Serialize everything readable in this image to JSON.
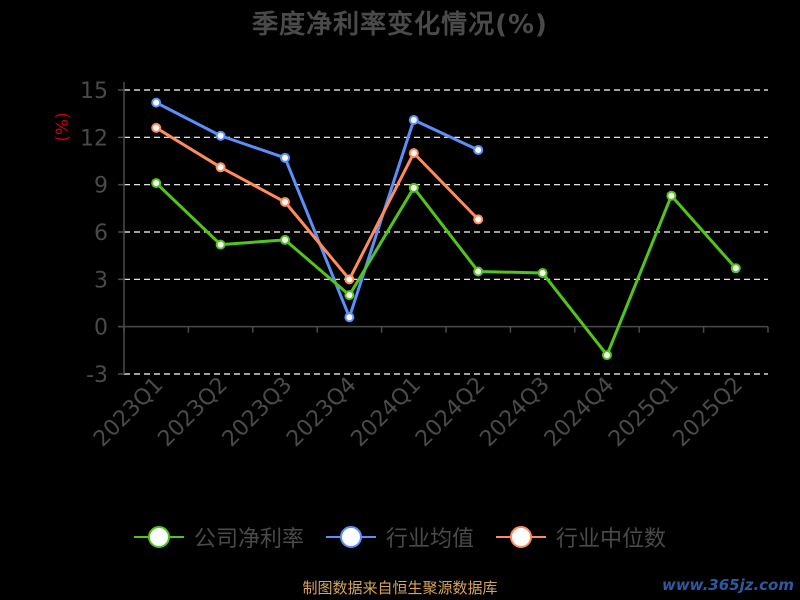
{
  "page": {
    "title": "季度净利率变化情况(%)",
    "unit": "(%)",
    "source": "制图数据来自恒生聚源数据库",
    "watermark": "www.365jz.com"
  },
  "chart_data": {
    "type": "line",
    "title": "季度净利率变化情况(%)",
    "ylabel": "(%)",
    "xlabel": "",
    "categories": [
      "2023Q1",
      "2023Q2",
      "2023Q3",
      "2023Q4",
      "2024Q1",
      "2024Q2",
      "2024Q3",
      "2024Q4",
      "2025Q1",
      "2025Q2"
    ],
    "yticks": [
      15,
      12,
      9,
      6,
      3,
      0,
      -3
    ],
    "ylim": [
      -3,
      15
    ],
    "grid": "horizontal-dashed",
    "legend_position": "bottom",
    "series": [
      {
        "name": "公司净利率",
        "color": "#52c41a",
        "values": [
          9.1,
          5.2,
          5.5,
          2.0,
          8.8,
          3.5,
          3.4,
          -1.8,
          8.3,
          3.7
        ]
      },
      {
        "name": "行业均值",
        "color": "#5b8ff9",
        "values": [
          14.2,
          12.1,
          10.7,
          0.6,
          13.1,
          11.2,
          null,
          null,
          null,
          null
        ]
      },
      {
        "name": "行业中位数",
        "color": "#ff8c5a",
        "values": [
          12.6,
          10.1,
          7.9,
          3.0,
          11.0,
          6.8,
          null,
          null,
          null,
          null
        ]
      }
    ]
  }
}
